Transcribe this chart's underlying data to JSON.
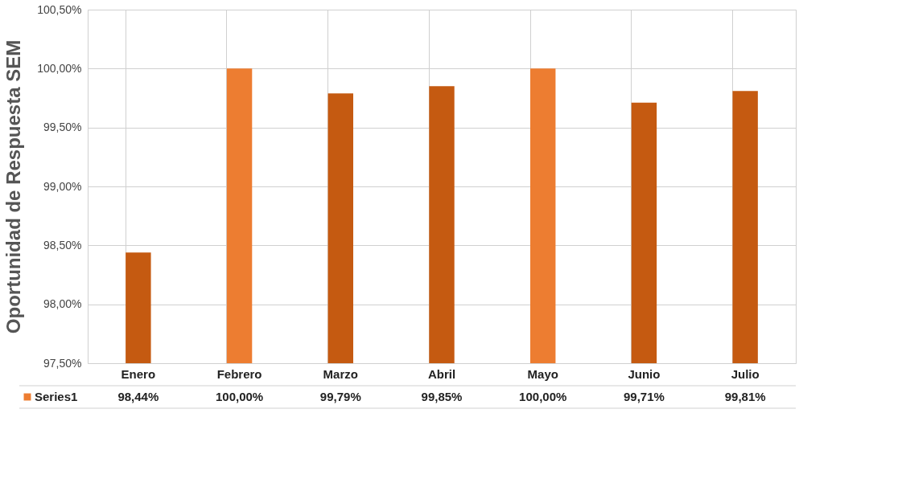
{
  "chart_data": {
    "type": "bar",
    "ylabel": "Oportunidad de Respuesta SEM",
    "categories": [
      "Enero",
      "Febrero",
      "Marzo",
      "Abril",
      "Mayo",
      "Junio",
      "Julio"
    ],
    "series": [
      {
        "name": "Series1",
        "color": "#ed7d31",
        "colors": [
          "#c55a11",
          "#ed7d31",
          "#c55a11",
          "#c55a11",
          "#ed7d31",
          "#c55a11",
          "#c55a11"
        ],
        "values": [
          98.44,
          100.0,
          99.79,
          99.85,
          100.0,
          99.71,
          99.81
        ],
        "value_labels": [
          "98,44%",
          "100,00%",
          "99,79%",
          "99,85%",
          "100,00%",
          "99,71%",
          "99,81%"
        ]
      }
    ],
    "ylim": [
      97.5,
      100.5
    ],
    "yticks": [
      {
        "value": 97.5,
        "label": "97,50%"
      },
      {
        "value": 98.0,
        "label": "98,00%"
      },
      {
        "value": 98.5,
        "label": "98,50%"
      },
      {
        "value": 99.0,
        "label": "99,00%"
      },
      {
        "value": 99.5,
        "label": "99,50%"
      },
      {
        "value": 100.0,
        "label": "100,00%"
      },
      {
        "value": 100.5,
        "label": "100,50%"
      }
    ],
    "grid": true,
    "legend": "bottom left"
  }
}
